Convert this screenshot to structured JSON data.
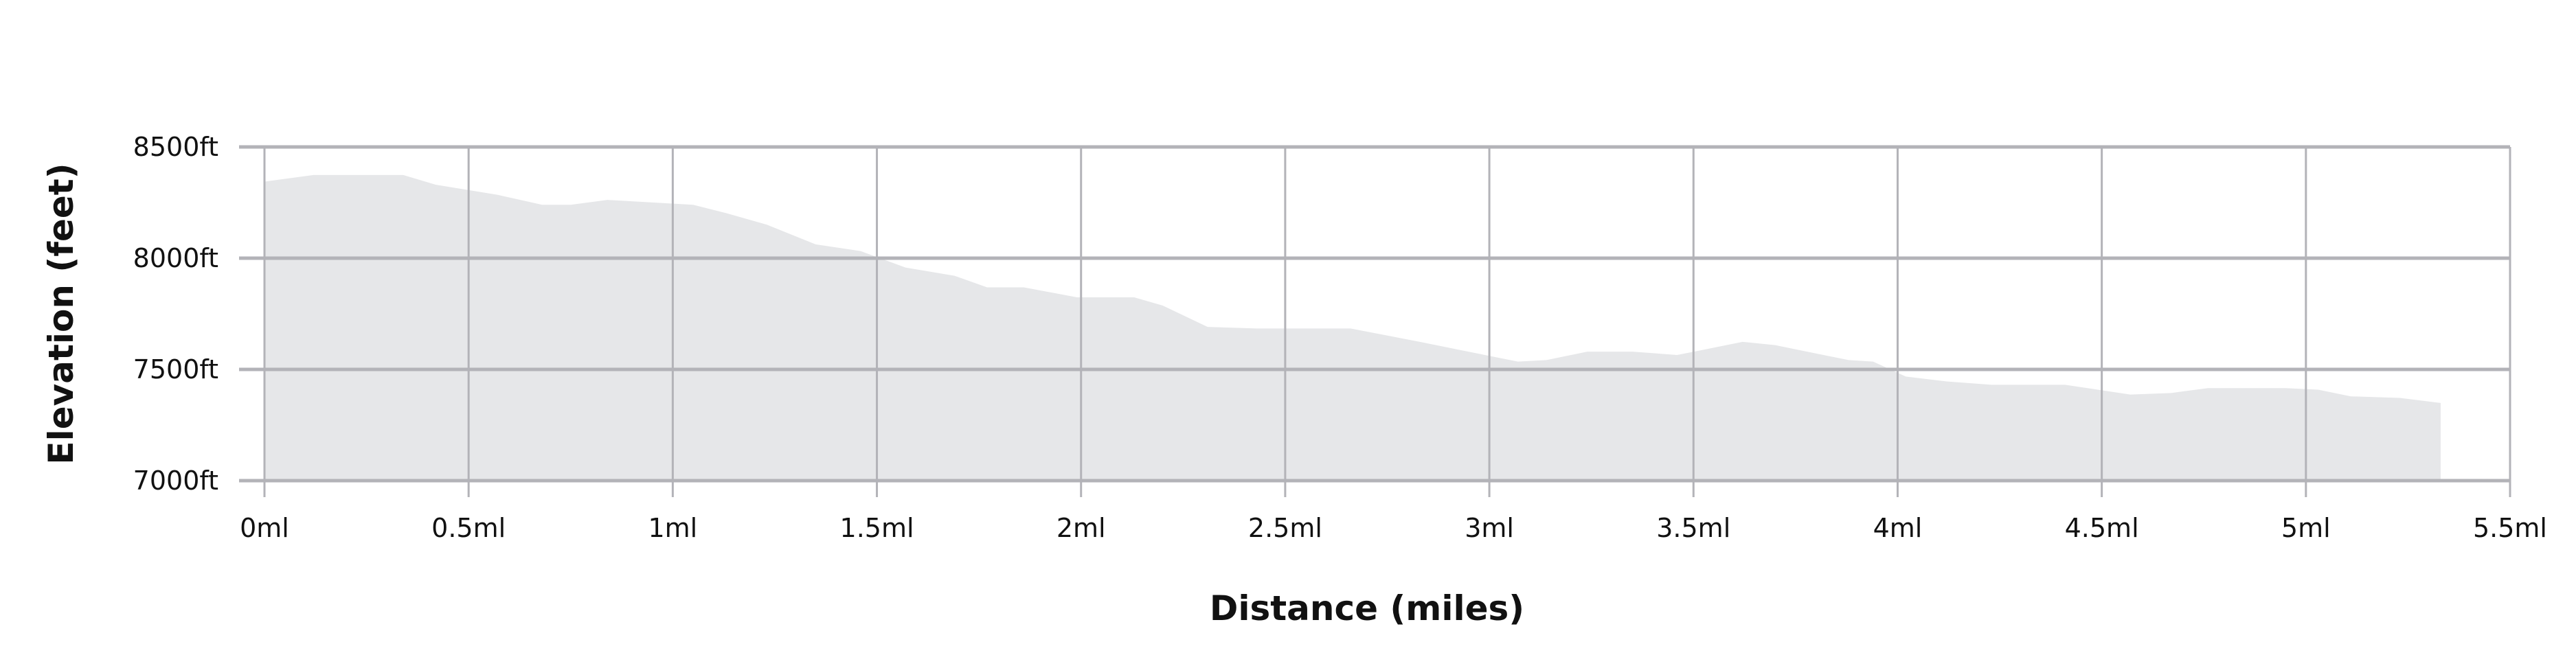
{
  "chart_data": {
    "type": "area",
    "title": "",
    "xlabel": "Distance (miles)",
    "ylabel": "Elevation (feet)",
    "xlim": [
      0,
      5.5
    ],
    "ylim": [
      7000,
      8500
    ],
    "grid": true,
    "x_ticks": [
      0,
      0.5,
      1,
      1.5,
      2,
      2.5,
      3,
      3.5,
      4,
      4.5,
      5,
      5.5
    ],
    "x_tick_labels": [
      "0ml",
      "0.5ml",
      "1ml",
      "1.5ml",
      "2ml",
      "2.5ml",
      "3ml",
      "3.5ml",
      "4ml",
      "4.5ml",
      "5ml",
      "5.5ml"
    ],
    "y_ticks": [
      7000,
      7500,
      8000,
      8500
    ],
    "y_tick_labels": [
      "7000ft",
      "7500ft",
      "8000ft",
      "8500ft"
    ],
    "colors": {
      "fill": "#e6e7e9",
      "grid": "#b3b3b8"
    },
    "x": [
      0,
      0.12,
      0.34,
      0.42,
      0.57,
      0.68,
      0.75,
      0.84,
      1.05,
      1.13,
      1.23,
      1.35,
      1.46,
      1.57,
      1.69,
      1.77,
      1.86,
      1.99,
      2.13,
      2.2,
      2.31,
      2.43,
      2.66,
      2.83,
      2.91,
      3.07,
      3.14,
      3.24,
      3.35,
      3.46,
      3.54,
      3.62,
      3.7,
      3.88,
      3.94,
      4.02,
      4.12,
      4.23,
      4.41,
      4.49,
      4.57,
      4.67,
      4.76,
      4.95,
      5.03,
      5.11,
      5.23,
      5.33
    ],
    "y": [
      8344,
      8374,
      8374,
      8330,
      8285,
      8240,
      8240,
      8262,
      8240,
      8203,
      8151,
      8062,
      8032,
      7958,
      7921,
      7869,
      7869,
      7824,
      7824,
      7787,
      7691,
      7684,
      7684,
      7624,
      7594,
      7535,
      7542,
      7580,
      7580,
      7565,
      7594,
      7624,
      7609,
      7542,
      7535,
      7468,
      7446,
      7431,
      7431,
      7409,
      7387,
      7394,
      7416,
      7416,
      7409,
      7379,
      7372,
      7349
    ]
  }
}
